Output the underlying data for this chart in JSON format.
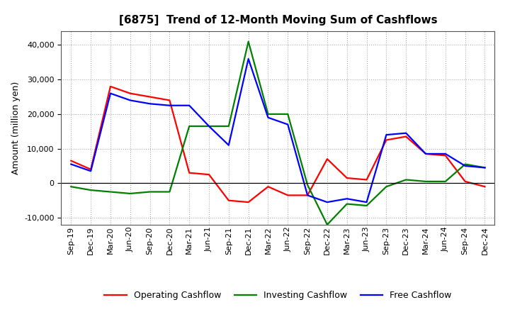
{
  "title": "[6875]  Trend of 12-Month Moving Sum of Cashflows",
  "ylabel": "Amount (million yen)",
  "background_color": "#ffffff",
  "grid_color": "#999999",
  "x_labels": [
    "Sep-19",
    "Dec-19",
    "Mar-20",
    "Jun-20",
    "Sep-20",
    "Dec-20",
    "Mar-21",
    "Jun-21",
    "Sep-21",
    "Dec-21",
    "Mar-22",
    "Jun-22",
    "Sep-22",
    "Dec-22",
    "Mar-23",
    "Jun-23",
    "Sep-23",
    "Dec-23",
    "Mar-24",
    "Jun-24",
    "Sep-24",
    "Dec-24"
  ],
  "operating_cashflow": [
    6500,
    4000,
    28000,
    26000,
    25000,
    24000,
    3000,
    2500,
    -5000,
    -5500,
    -1000,
    -3500,
    -3500,
    7000,
    1500,
    1000,
    12500,
    13500,
    8500,
    8000,
    500,
    -1000
  ],
  "investing_cashflow": [
    -1000,
    -2000,
    -2500,
    -3000,
    -2500,
    -2500,
    16500,
    16500,
    16500,
    41000,
    20000,
    20000,
    -500,
    -12000,
    -6000,
    -6500,
    -1000,
    1000,
    500,
    500,
    5500,
    4500
  ],
  "free_cashflow": [
    5500,
    3500,
    26000,
    24000,
    23000,
    22500,
    22500,
    16500,
    11000,
    36000,
    19000,
    17000,
    -3500,
    -5500,
    -4500,
    -5500,
    14000,
    14500,
    8500,
    8500,
    5000,
    4500
  ],
  "operating_color": "#ff0000",
  "investing_color": "#008000",
  "free_color": "#0000ff",
  "ylim": [
    -12000,
    44000
  ],
  "yticks": [
    -10000,
    0,
    10000,
    20000,
    30000,
    40000
  ],
  "line_width": 1.6,
  "title_fontsize": 11,
  "tick_fontsize": 8,
  "ylabel_fontsize": 9,
  "legend_fontsize": 9
}
